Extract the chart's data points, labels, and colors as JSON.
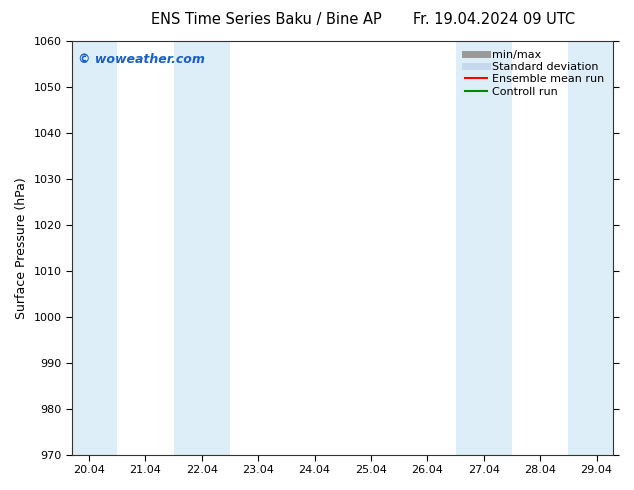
{
  "title_left": "ENS Time Series Baku / Bine AP",
  "title_right": "Fr. 19.04.2024 09 UTC",
  "ylabel": "Surface Pressure (hPa)",
  "ylim": [
    970,
    1060
  ],
  "yticks": [
    970,
    980,
    990,
    1000,
    1010,
    1020,
    1030,
    1040,
    1050,
    1060
  ],
  "xtick_labels": [
    "20.04",
    "21.04",
    "22.04",
    "23.04",
    "24.04",
    "25.04",
    "26.04",
    "27.04",
    "28.04",
    "29.04"
  ],
  "xtick_positions": [
    0,
    1,
    2,
    3,
    4,
    5,
    6,
    7,
    8,
    9
  ],
  "xlim": [
    -0.3,
    9.3
  ],
  "watermark": "© woweather.com",
  "watermark_color": "#1a5fc8",
  "bg_color": "#ffffff",
  "plot_bg_color": "#ffffff",
  "shaded_bands": [
    {
      "x_start": -0.3,
      "x_end": 0.5,
      "color": "#ddeef8"
    },
    {
      "x_start": 1.5,
      "x_end": 2.5,
      "color": "#ddeef8"
    },
    {
      "x_start": 6.5,
      "x_end": 7.5,
      "color": "#ddeef8"
    },
    {
      "x_start": 8.5,
      "x_end": 9.3,
      "color": "#ddeef8"
    }
  ],
  "legend_items": [
    {
      "label": "min/max",
      "color": "#999999",
      "linewidth": 5,
      "linestyle": "-"
    },
    {
      "label": "Standard deviation",
      "color": "#c5d8ed",
      "linewidth": 5,
      "linestyle": "-"
    },
    {
      "label": "Ensemble mean run",
      "color": "#ff0000",
      "linewidth": 1.5,
      "linestyle": "-"
    },
    {
      "label": "Controll run",
      "color": "#008800",
      "linewidth": 1.5,
      "linestyle": "-"
    }
  ],
  "title_fontsize": 10.5,
  "axis_label_fontsize": 9,
  "tick_fontsize": 8,
  "legend_fontsize": 8
}
